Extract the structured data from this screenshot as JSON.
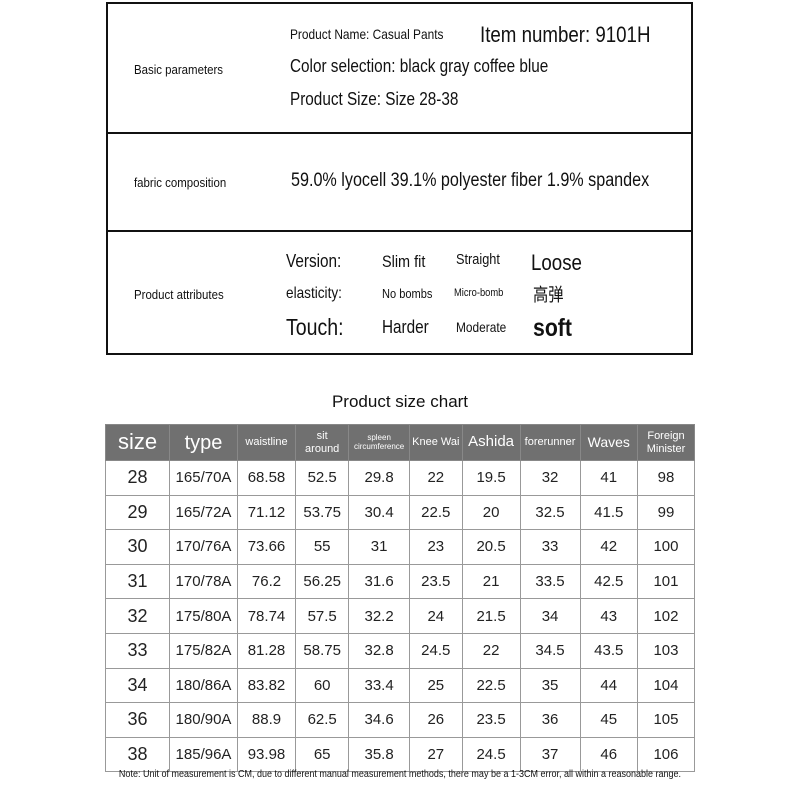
{
  "basic": {
    "label": "Basic parameters",
    "product_name": "Product Name: Casual Pants",
    "item_number": "Item number: 9101H",
    "color": "Color selection: black gray coffee blue",
    "size": "Product Size: Size 28-38"
  },
  "fabric": {
    "label": "fabric composition",
    "value": "59.0% lyocell 39.1% polyester fiber 1.9% spandex"
  },
  "attributes": {
    "label": "Product attributes",
    "rows": [
      {
        "name": "Version:",
        "options": [
          "Slim fit",
          "Straight",
          "Loose"
        ]
      },
      {
        "name": "elasticity:",
        "options": [
          "No bombs",
          "Micro-bomb",
          "高弹"
        ]
      },
      {
        "name": "Touch:",
        "options": [
          "Harder",
          "Moderate",
          "soft"
        ]
      }
    ]
  },
  "chart": {
    "title": "Product size chart",
    "headers": [
      "size",
      "type",
      "waistline",
      "sit around",
      "spleen circumference",
      "Knee Wai",
      "Ashida",
      "forerunner",
      "Waves",
      "Foreign Minister"
    ],
    "rows": [
      [
        "28",
        "165/70A",
        "68.58",
        "52.5",
        "29.8",
        "22",
        "19.5",
        "32",
        "41",
        "98"
      ],
      [
        "29",
        "165/72A",
        "71.12",
        "53.75",
        "30.4",
        "22.5",
        "20",
        "32.5",
        "41.5",
        "99"
      ],
      [
        "30",
        "170/76A",
        "73.66",
        "55",
        "31",
        "23",
        "20.5",
        "33",
        "42",
        "100"
      ],
      [
        "31",
        "170/78A",
        "76.2",
        "56.25",
        "31.6",
        "23.5",
        "21",
        "33.5",
        "42.5",
        "101"
      ],
      [
        "32",
        "175/80A",
        "78.74",
        "57.5",
        "32.2",
        "24",
        "21.5",
        "34",
        "43",
        "102"
      ],
      [
        "33",
        "175/82A",
        "81.28",
        "58.75",
        "32.8",
        "24.5",
        "22",
        "34.5",
        "43.5",
        "103"
      ],
      [
        "34",
        "180/86A",
        "83.82",
        "60",
        "33.4",
        "25",
        "22.5",
        "35",
        "44",
        "104"
      ],
      [
        "36",
        "180/90A",
        "88.9",
        "62.5",
        "34.6",
        "26",
        "23.5",
        "36",
        "45",
        "105"
      ],
      [
        "38",
        "185/96A",
        "93.98",
        "65",
        "35.8",
        "27",
        "24.5",
        "37",
        "46",
        "106"
      ]
    ]
  },
  "note": "Note: Unit of measurement is CM, due to different manual measurement methods, there may be a 1-3CM error, all within a reasonable range."
}
